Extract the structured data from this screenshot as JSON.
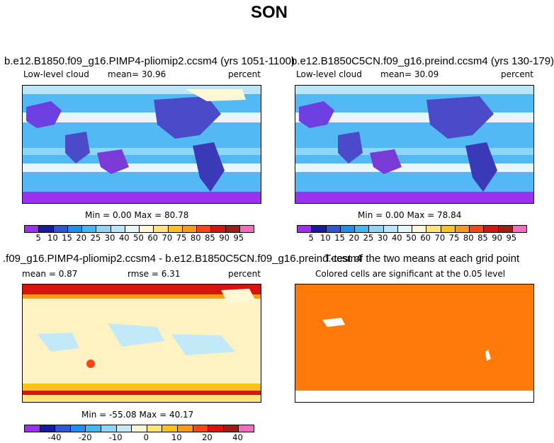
{
  "title": "SON",
  "panels": [
    {
      "title": "b.e12.B1850.f09_g16.PIMP4-pliomip2.ccsm4 (yrs 1051-1100)",
      "variable": "Low-level cloud",
      "mean": "mean=   30.96",
      "units": "percent",
      "minmax": "Min =    0.00 Max =   80.78"
    },
    {
      "title": "b.e12.B1850C5CN.f09_g16.preind.ccsm4 (yrs 130-179)",
      "variable": "Low-level cloud",
      "mean": "mean=   30.09",
      "units": "percent",
      "minmax": "Min =    0.00 Max =   78.84"
    },
    {
      "title": ".f09_g16.PIMP4-pliomip2.ccsm4 - b.e12.B1850C5CN.f09_g16.preind.ccsm4",
      "mean": "mean =    0.87",
      "rmse": "rmse =    6.31",
      "units": "percent",
      "minmax": "Min = -55.08 Max =   40.17"
    },
    {
      "title": "T-test of the two means at each grid point",
      "subtitle": "Colored cells are significant at the 0.05 level"
    }
  ],
  "colorbar_abs": {
    "labels": [
      "5",
      "10",
      "15",
      "20",
      "25",
      "30",
      "40",
      "50",
      "60",
      "70",
      "75",
      "80",
      "85",
      "90",
      "95"
    ],
    "colors": [
      "#9b30f0",
      "#1a1aa0",
      "#2f55d8",
      "#1e8ff0",
      "#42b8f5",
      "#8dd6f7",
      "#b9e7f9",
      "#e6f6fb",
      "#fff7d3",
      "#ffe47a",
      "#ffc21a",
      "#ff9a19",
      "#ff4512",
      "#d8140e",
      "#a01c14",
      "#f36cc0"
    ]
  },
  "colorbar_diff": {
    "labels": [
      "-40",
      "-20",
      "-10",
      "0",
      "10",
      "20",
      "40"
    ],
    "colors": [
      "#9b30f0",
      "#1a1aa0",
      "#2f55d8",
      "#1e8ff0",
      "#42b8f5",
      "#8dd6f7",
      "#c3e9f9",
      "#fff7d3",
      "#ffe47a",
      "#ffc21a",
      "#ff9a19",
      "#ff4512",
      "#d8140e",
      "#a01c14",
      "#f36cc0"
    ]
  },
  "map_colors": {
    "land_abs": "#4b4bc9",
    "ocean_abs": "#52b9f4",
    "diff_bg": "#fdf2c2",
    "ttest": "#ff7a0a"
  }
}
